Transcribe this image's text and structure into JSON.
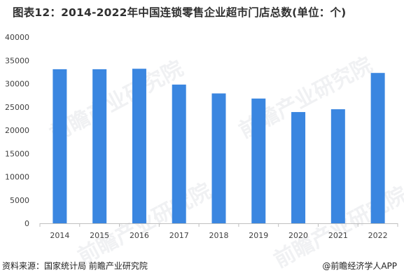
{
  "chart_data": {
    "type": "bar",
    "title": "图表12：2014-2022年中国连锁零售企业超市门店总数(单位：个)",
    "categories": [
      "2014",
      "2015",
      "2016",
      "2017",
      "2018",
      "2019",
      "2020",
      "2021",
      "2022"
    ],
    "series": [
      {
        "values": [
          33100,
          33100,
          33200,
          29800,
          27900,
          26800,
          23900,
          24500,
          32300
        ]
      }
    ],
    "ylim": [
      0,
      40000
    ],
    "yticks": [
      0,
      5000,
      10000,
      15000,
      20000,
      25000,
      30000,
      35000,
      40000
    ],
    "grid": false,
    "legend": "none",
    "bar_color": "#3a86e0",
    "axis_color": "#bfbfbf",
    "xlabel": "",
    "ylabel": ""
  },
  "footer": {
    "source": "资料来源：国家统计局 前瞻产业研究院",
    "credit": "@前瞻经济学人APP"
  },
  "watermark": {
    "text": "前瞻产业研究院"
  }
}
